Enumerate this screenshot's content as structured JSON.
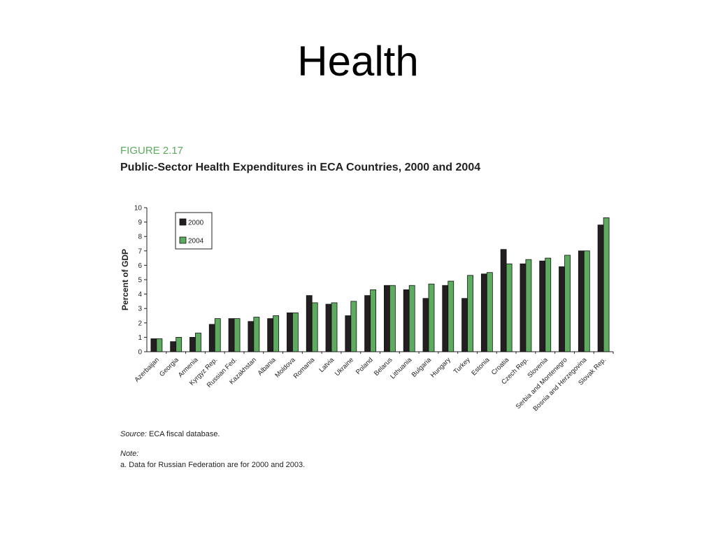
{
  "slide": {
    "title": "Health"
  },
  "figure": {
    "label": "FIGURE 2.17",
    "title": "Public-Sector Health Expenditures in ECA Countries, 2000 and 2004"
  },
  "colors": {
    "series_2000": "#231f20",
    "series_2004": "#5cab5e",
    "figure_label": "#5cab5e"
  },
  "chart_data": {
    "type": "bar",
    "title": "Public-Sector Health Expenditures in ECA Countries, 2000 and 2004",
    "xlabel": "",
    "ylabel": "Percent of GDP",
    "ylim": [
      0,
      10
    ],
    "yticks": [
      0,
      1,
      2,
      3,
      4,
      5,
      6,
      7,
      8,
      9,
      10
    ],
    "grid": false,
    "legend": "top-left",
    "categories": [
      "Azerbaijan",
      "Georgia",
      "Armenia",
      "Kyrgyz Rep.",
      "Russian Fed.",
      "Kazakhstan",
      "Albania",
      "Moldova",
      "Romania",
      "Latvia",
      "Ukraine",
      "Poland",
      "Belarus",
      "Lithuania",
      "Bulgaria",
      "Hungary",
      "Turkey",
      "Estonia",
      "Croatia",
      "Czech Rep.",
      "Slovenia",
      "Serbia and Montenegro",
      "Bosnia and Herzegovina",
      "Slovak Rep."
    ],
    "series": [
      {
        "name": "2000",
        "values": [
          0.9,
          0.7,
          1.0,
          1.9,
          2.3,
          2.1,
          2.3,
          2.7,
          3.9,
          3.3,
          2.5,
          3.9,
          4.6,
          4.3,
          3.7,
          4.6,
          3.7,
          5.4,
          7.1,
          6.1,
          6.3,
          5.9,
          7.0,
          8.8
        ]
      },
      {
        "name": "2004",
        "values": [
          0.9,
          1.0,
          1.3,
          2.3,
          2.3,
          2.4,
          2.5,
          2.7,
          3.4,
          3.4,
          3.5,
          4.3,
          4.6,
          4.6,
          4.7,
          4.9,
          5.3,
          5.5,
          6.1,
          6.4,
          6.5,
          6.7,
          7.0,
          9.3
        ]
      }
    ]
  },
  "source": {
    "label": "Source:",
    "text": "ECA fiscal database."
  },
  "note": {
    "label": "Note:",
    "text": "a. Data for Russian Federation are for 2000 and 2003."
  }
}
